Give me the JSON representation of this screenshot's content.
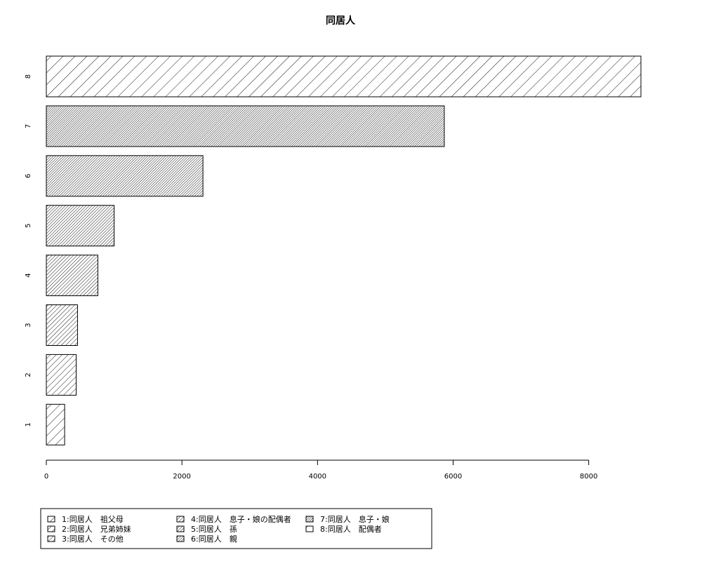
{
  "chart_data": {
    "type": "bar",
    "orientation": "horizontal",
    "title": "同居人",
    "xlabel": "",
    "ylabel": "",
    "categories": [
      "1",
      "2",
      "3",
      "4",
      "5",
      "6",
      "7",
      "8"
    ],
    "values": [
      270,
      440,
      460,
      760,
      1000,
      2310,
      5870,
      8770
    ],
    "xlim": [
      0,
      8770
    ],
    "x_ticks": [
      0,
      2000,
      4000,
      6000,
      8000
    ],
    "x_tick_labels": [
      "0",
      "2000",
      "4000",
      "6000",
      "8000"
    ],
    "grid": false,
    "legend": {
      "placement": "bottom-left",
      "entries": [
        "1:同居人　祖父母",
        "2:同居人　兄弟姉妹",
        "3:同居人　その他",
        "4:同居人　息子・娘の配偶者",
        "5:同居人　孫",
        "6:同居人　親",
        "7:同居人　息子・娘",
        "8:同居人　配偶者"
      ]
    },
    "hatch": {
      "angles": [
        45,
        45,
        45,
        45,
        45,
        45,
        45,
        45
      ],
      "densities": [
        4,
        6,
        8,
        10,
        12,
        14,
        16,
        3
      ]
    },
    "colors": {
      "stroke": "#000000",
      "background": "#ffffff"
    }
  }
}
